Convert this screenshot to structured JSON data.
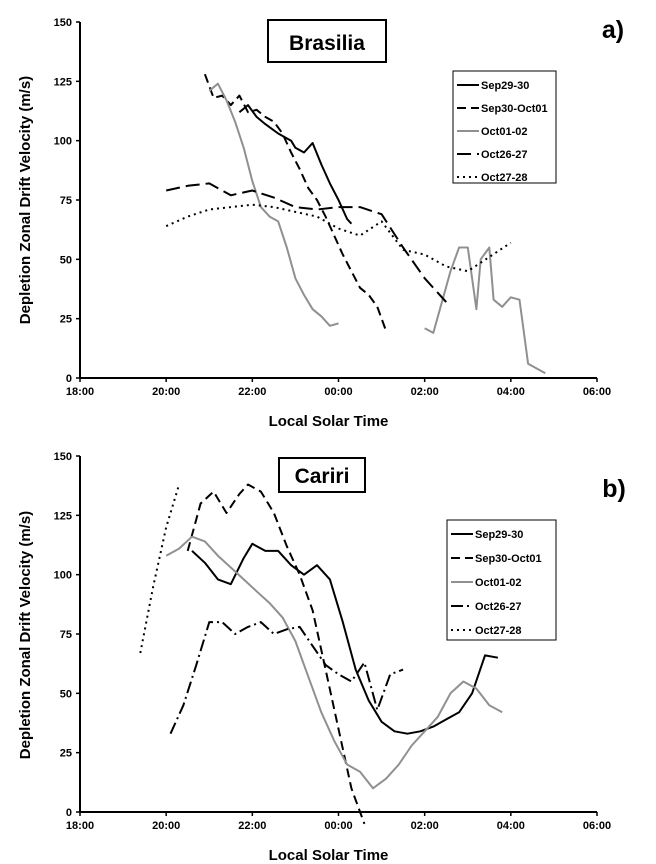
{
  "chart_data": [
    {
      "type": "line",
      "panel_label": "a)",
      "title": "Brasilia",
      "xlabel": "Local Solar Time",
      "ylabel": "Depletion Zonal Drift Velocity (m/s)",
      "xlim": [
        18,
        30
      ],
      "ylim": [
        0,
        150
      ],
      "x_ticks": [
        "18:00",
        "20:00",
        "22:00",
        "00:00",
        "02:00",
        "04:00",
        "06:00"
      ],
      "y_ticks": [
        "0",
        "25",
        "50",
        "75",
        "100",
        "125",
        "150"
      ],
      "legend_position": "top-right",
      "series": [
        {
          "name": "Sep29-30",
          "color": "#000000",
          "dash": "solid",
          "x": [
            21.7,
            21.9,
            22.1,
            22.3,
            22.6,
            22.9,
            23.0,
            23.2,
            23.4,
            23.6,
            23.8,
            24.0,
            24.2,
            24.3
          ],
          "y": [
            112,
            115,
            110,
            107,
            103,
            100,
            97,
            95,
            99,
            90,
            82,
            75,
            67,
            65
          ]
        },
        {
          "name": "Sep30-Oct01",
          "color": "#000000",
          "dash": "dash",
          "x": [
            20.9,
            21.1,
            21.3,
            21.5,
            21.7,
            21.9,
            22.1,
            22.3,
            22.5,
            22.7,
            22.9,
            23.1,
            23.3,
            23.5,
            23.7,
            23.9,
            24.1,
            24.3,
            24.5,
            24.7,
            24.9,
            25.1
          ],
          "y": [
            128,
            118,
            119,
            115,
            119,
            112,
            113,
            110,
            108,
            103,
            95,
            88,
            80,
            75,
            68,
            60,
            52,
            45,
            38,
            35,
            30,
            20
          ]
        },
        {
          "name": "Oct01-02",
          "color": "#909090",
          "dash": "solid",
          "x": [
            21.0,
            21.2,
            21.4,
            21.6,
            21.8,
            22.0,
            22.2,
            22.4,
            22.6,
            22.8,
            23.0,
            23.2,
            23.4,
            23.6,
            23.8,
            24.0,
            null,
            26.0,
            26.2,
            26.4,
            26.6,
            26.8,
            27.0,
            27.2,
            27.3,
            27.5,
            27.6,
            27.8,
            28.0,
            28.2,
            28.4,
            28.6,
            28.8
          ],
          "y": [
            121,
            124,
            117,
            108,
            97,
            83,
            72,
            68,
            66,
            55,
            42,
            35,
            29,
            26,
            22,
            23,
            null,
            21,
            19,
            32,
            45,
            55,
            55,
            29,
            50,
            55,
            33,
            30,
            34,
            33,
            6,
            4,
            2
          ]
        },
        {
          "name": "Oct26-27",
          "color": "#000000",
          "dash": "longdash",
          "x": [
            20.0,
            20.5,
            21.0,
            21.5,
            22.0,
            22.5,
            23.0,
            23.5,
            24.0,
            24.5,
            25.0,
            25.5,
            26.0,
            26.5
          ],
          "y": [
            79,
            81,
            82,
            77,
            79,
            76,
            72,
            71,
            72,
            72,
            69,
            55,
            42,
            32
          ]
        },
        {
          "name": "Oct27-28",
          "color": "#000000",
          "dash": "dot",
          "x": [
            20.0,
            20.5,
            21.0,
            21.5,
            22.0,
            22.5,
            23.0,
            23.5,
            24.0,
            24.5,
            25.0,
            25.5,
            26.0,
            26.5,
            27.0,
            27.5,
            28.0
          ],
          "y": [
            64,
            68,
            71,
            72,
            73,
            72,
            70,
            68,
            63,
            60,
            66,
            54,
            52,
            47,
            45,
            51,
            57
          ]
        }
      ]
    },
    {
      "type": "line",
      "panel_label": "b)",
      "title": "Cariri",
      "xlabel": "Local Solar Time",
      "ylabel": "Depletion Zonal Drift Velocity (m/s)",
      "xlim": [
        18,
        30
      ],
      "ylim": [
        0,
        150
      ],
      "x_ticks": [
        "18:00",
        "20:00",
        "22:00",
        "00:00",
        "02:00",
        "04:00",
        "06:00"
      ],
      "y_ticks": [
        "0",
        "25",
        "50",
        "75",
        "100",
        "125",
        "150"
      ],
      "legend_position": "top-right",
      "series": [
        {
          "name": "Sep29-30",
          "color": "#000000",
          "dash": "solid",
          "x": [
            20.6,
            20.9,
            21.2,
            21.5,
            21.8,
            22.0,
            22.3,
            22.6,
            22.9,
            23.2,
            23.5,
            23.8,
            24.1,
            24.4,
            24.7,
            25.0,
            25.3,
            25.6,
            25.9,
            26.2,
            26.5,
            26.8,
            27.1,
            27.4,
            27.7
          ],
          "y": [
            110,
            105,
            98,
            96,
            107,
            113,
            110,
            110,
            104,
            100,
            104,
            98,
            80,
            60,
            47,
            38,
            34,
            33,
            34,
            36,
            39,
            42,
            50,
            66,
            65
          ]
        },
        {
          "name": "Sep30-Oct01",
          "color": "#000000",
          "dash": "dash",
          "x": [
            20.5,
            20.8,
            21.1,
            21.4,
            21.7,
            21.9,
            22.2,
            22.5,
            22.8,
            23.1,
            23.4,
            23.7,
            24.0,
            24.3,
            24.6
          ],
          "y": [
            110,
            130,
            135,
            126,
            134,
            138,
            135,
            126,
            112,
            100,
            85,
            60,
            35,
            10,
            -5
          ]
        },
        {
          "name": "Oct01-02",
          "color": "#909090",
          "dash": "solid",
          "x": [
            20.0,
            20.3,
            20.6,
            20.9,
            21.2,
            21.5,
            21.8,
            22.1,
            22.4,
            22.7,
            23.0,
            23.3,
            23.6,
            23.9,
            24.2,
            24.5,
            24.8,
            25.1,
            25.4,
            25.7,
            26.0,
            26.3,
            26.6,
            26.9,
            27.2,
            27.5,
            27.8
          ],
          "y": [
            108,
            111,
            116,
            114,
            108,
            103,
            98,
            93,
            88,
            82,
            72,
            57,
            42,
            30,
            20,
            17,
            10,
            14,
            20,
            28,
            34,
            40,
            50,
            55,
            52,
            45,
            42
          ]
        },
        {
          "name": "Oct26-27",
          "color": "#000000",
          "dash": "dashdot",
          "x": [
            20.1,
            20.4,
            20.7,
            21.0,
            21.3,
            21.6,
            21.9,
            22.2,
            22.5,
            22.8,
            23.1,
            23.4,
            23.7,
            24.0,
            24.3,
            24.6,
            24.9,
            25.2,
            25.5
          ],
          "y": [
            33,
            45,
            62,
            80,
            80,
            75,
            78,
            80,
            75,
            77,
            78,
            70,
            62,
            58,
            55,
            63,
            43,
            58,
            60
          ]
        },
        {
          "name": "Oct27-28",
          "color": "#000000",
          "dash": "dot",
          "x": [
            19.4,
            19.7,
            20.0,
            20.3
          ],
          "y": [
            67,
            95,
            120,
            138
          ]
        }
      ]
    }
  ]
}
